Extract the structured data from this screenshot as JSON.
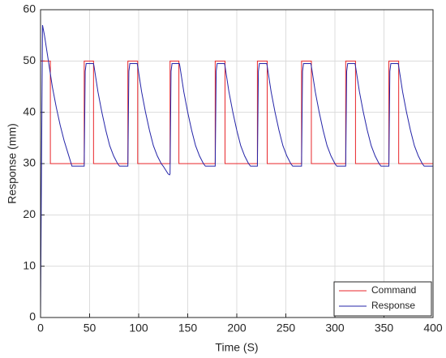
{
  "chart_data": {
    "type": "line",
    "xlabel": "Time (S)",
    "ylabel": "Response (mm)",
    "xlim": [
      0,
      400
    ],
    "xticks": [
      0,
      50,
      100,
      150,
      200,
      250,
      300,
      350,
      400
    ],
    "ylim": [
      0,
      60
    ],
    "yticks": [
      0,
      10,
      20,
      30,
      40,
      50,
      60
    ],
    "grid": true,
    "legend": "lower right",
    "series": [
      {
        "name": "Command",
        "color": "#e8262a",
        "x": [
          0,
          0,
          10,
          10,
          44.5,
          44.5,
          54,
          54,
          89,
          89,
          99,
          99,
          132,
          132,
          141,
          141,
          178,
          178,
          188,
          188,
          221,
          221,
          231,
          231,
          266,
          266,
          276,
          276,
          311,
          311,
          321,
          321,
          355,
          355,
          365,
          365,
          400
        ],
        "values": [
          0,
          50,
          50,
          30,
          30,
          50,
          50,
          30,
          30,
          50,
          50,
          30,
          30,
          50,
          50,
          30,
          30,
          50,
          50,
          30,
          30,
          50,
          50,
          30,
          30,
          50,
          50,
          30,
          30,
          50,
          50,
          30,
          30,
          50,
          50,
          30,
          30
        ]
      },
      {
        "name": "Response",
        "color": "#2424a8",
        "x": [
          0,
          1,
          2,
          4,
          8,
          12,
          16,
          20,
          24,
          28,
          32,
          40,
          44.5,
          45.5,
          46.5,
          54,
          54.5,
          58.5,
          62.5,
          66.5,
          70.5,
          74.5,
          78.5,
          80.5,
          89,
          90,
          91,
          98.5,
          99,
          103,
          107,
          111,
          115,
          119,
          123,
          125,
          130,
          131.5,
          132,
          133,
          134,
          141.5,
          142,
          146,
          150,
          154,
          158,
          162,
          166,
          168,
          178,
          179,
          180,
          187.5,
          188,
          192,
          196,
          200,
          204,
          208,
          212,
          214,
          221,
          222,
          223,
          230.5,
          231,
          235,
          239,
          243,
          247,
          251,
          255,
          257,
          266,
          267,
          268,
          275.5,
          276,
          280,
          284,
          288,
          292,
          296,
          300,
          302,
          311,
          312,
          313,
          320.5,
          321,
          325,
          329,
          333,
          337,
          341,
          345,
          347,
          355,
          356,
          357,
          364.5,
          365,
          369,
          373,
          377,
          381,
          385,
          389,
          391,
          400
        ],
        "values": [
          0,
          30,
          57,
          55,
          50,
          45,
          41,
          37.5,
          34.5,
          32,
          29.5,
          29.5,
          29.5,
          48,
          49.5,
          49.5,
          49,
          44,
          40,
          36.5,
          33.5,
          31.5,
          30,
          29.5,
          29.5,
          48,
          49.5,
          49.5,
          49,
          44,
          40,
          36.5,
          33.5,
          31.5,
          30,
          29.5,
          28,
          27.8,
          28,
          48,
          49.5,
          49.5,
          49,
          44,
          40,
          36.5,
          33.5,
          31.5,
          30,
          29.5,
          29.5,
          48,
          49.5,
          49.5,
          49,
          44,
          40,
          36.5,
          33.5,
          31.5,
          30,
          29.5,
          29.5,
          48,
          49.5,
          49.5,
          49,
          44,
          40,
          36.5,
          33.5,
          31.5,
          30,
          29.5,
          29.5,
          48,
          49.5,
          49.5,
          49,
          44,
          40,
          36.5,
          33.5,
          31.5,
          30,
          29.5,
          29.5,
          48,
          49.5,
          49.5,
          49,
          44,
          40,
          36.5,
          33.5,
          31.5,
          30,
          29.5,
          29.5,
          48,
          49.5,
          49.5,
          49,
          44,
          40,
          36.5,
          33.5,
          31.5,
          30,
          29.5,
          29.5
        ]
      }
    ]
  }
}
